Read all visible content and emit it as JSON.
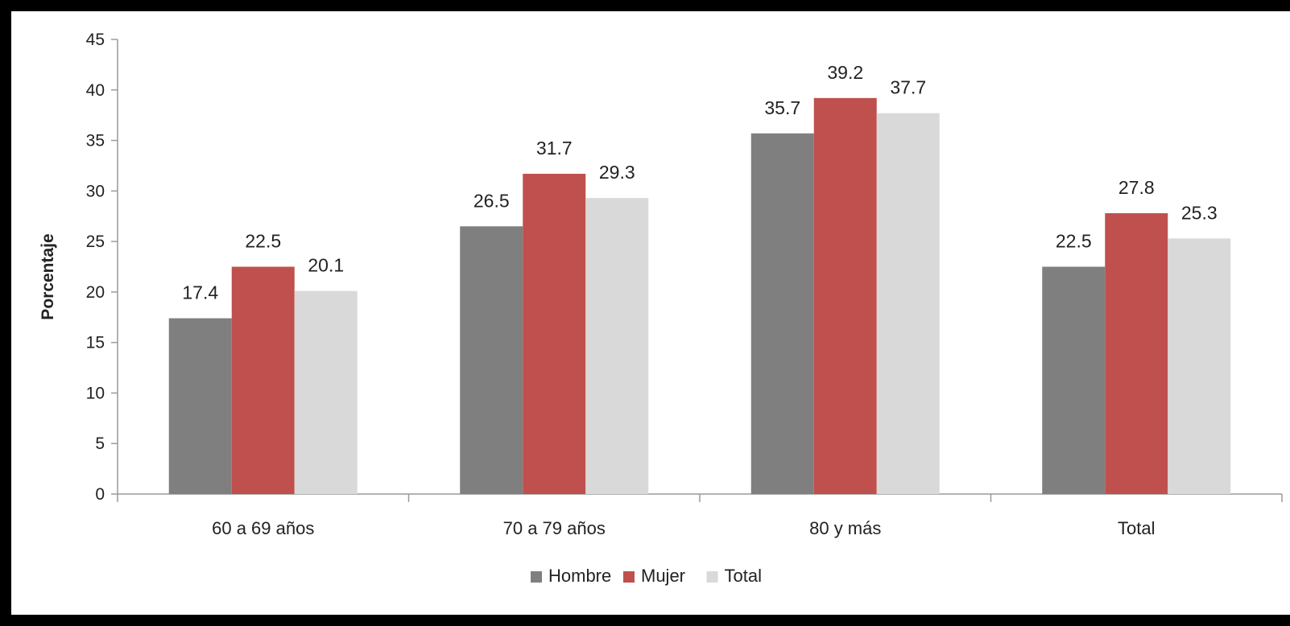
{
  "chart_data": {
    "type": "bar",
    "title": "",
    "xlabel": "",
    "ylabel": "Porcentaje",
    "ylim": [
      0,
      45
    ],
    "yticks": [
      0,
      5,
      10,
      15,
      20,
      25,
      30,
      35,
      40,
      45
    ],
    "grid": false,
    "legend_position": "bottom-center",
    "categories": [
      "60 a 69 años",
      "70 a 79 años",
      "80 y más",
      "Total"
    ],
    "series": [
      {
        "name": "Hombre",
        "color": "#7f7f7f",
        "values": [
          17.4,
          26.5,
          35.7,
          22.5
        ]
      },
      {
        "name": "Mujer",
        "color": "#c0504d",
        "values": [
          22.5,
          31.7,
          39.2,
          27.8
        ]
      },
      {
        "name": "Total",
        "color": "#d9d9d9",
        "values": [
          20.1,
          29.3,
          37.7,
          25.3
        ]
      }
    ]
  }
}
